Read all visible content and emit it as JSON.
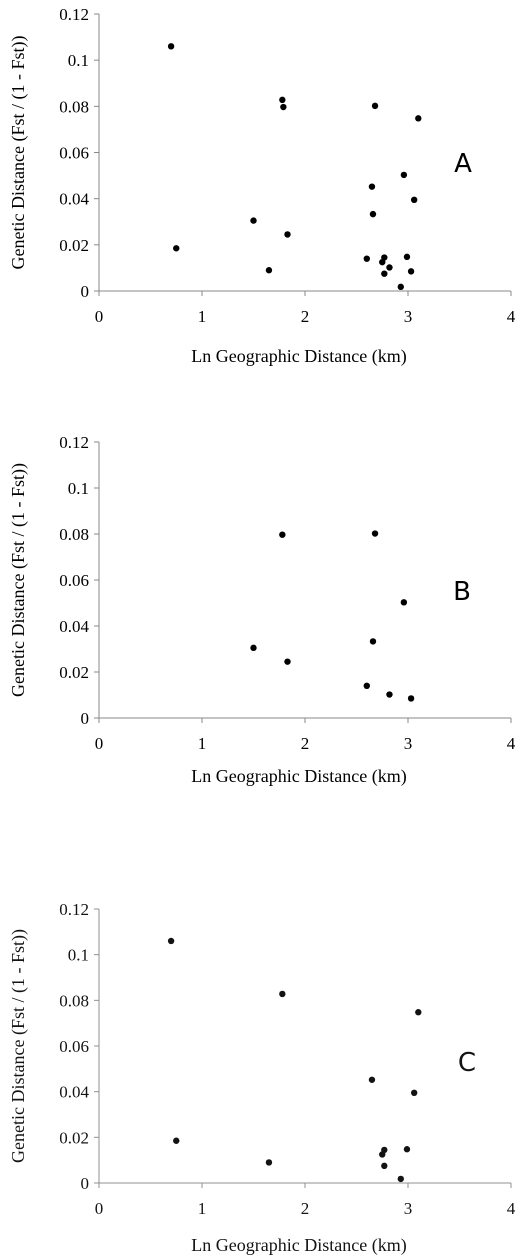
{
  "chart_data": [
    {
      "type": "scatter",
      "panel_label": "A",
      "xlabel": "Ln Geographic Distance (km)",
      "ylabel": "Genetic Distance (Fst / (1 - Fst))",
      "xlim": [
        0,
        4
      ],
      "ylim": [
        0,
        0.12
      ],
      "x_ticks": [
        "0",
        "1",
        "2",
        "3",
        "4"
      ],
      "y_ticks": [
        "0",
        "0.02",
        "0.04",
        "0.06",
        "0.08",
        "0.1",
        "0.12"
      ],
      "grid": false,
      "points": [
        {
          "x": 0.7,
          "y": 0.106
        },
        {
          "x": 0.75,
          "y": 0.0185
        },
        {
          "x": 1.5,
          "y": 0.0305
        },
        {
          "x": 1.65,
          "y": 0.009
        },
        {
          "x": 1.78,
          "y": 0.0828
        },
        {
          "x": 1.79,
          "y": 0.0797
        },
        {
          "x": 1.83,
          "y": 0.0245
        },
        {
          "x": 2.6,
          "y": 0.014
        },
        {
          "x": 2.65,
          "y": 0.0452
        },
        {
          "x": 2.66,
          "y": 0.0333
        },
        {
          "x": 2.68,
          "y": 0.0802
        },
        {
          "x": 2.75,
          "y": 0.0125
        },
        {
          "x": 2.77,
          "y": 0.0145
        },
        {
          "x": 2.77,
          "y": 0.0075
        },
        {
          "x": 2.82,
          "y": 0.0102
        },
        {
          "x": 2.93,
          "y": 0.0018
        },
        {
          "x": 2.96,
          "y": 0.0503
        },
        {
          "x": 2.99,
          "y": 0.0148
        },
        {
          "x": 3.03,
          "y": 0.0085
        },
        {
          "x": 3.06,
          "y": 0.0395
        },
        {
          "x": 3.1,
          "y": 0.0748
        }
      ]
    },
    {
      "type": "scatter",
      "panel_label": "B",
      "xlabel": "Ln Geographic Distance (km)",
      "ylabel": "Genetic Distance (Fst / (1 - Fst))",
      "xlim": [
        0,
        4
      ],
      "ylim": [
        0,
        0.12
      ],
      "x_ticks": [
        "0",
        "1",
        "2",
        "3",
        "4"
      ],
      "y_ticks": [
        "0",
        "0.02",
        "0.04",
        "0.06",
        "0.08",
        "0.1",
        "0.12"
      ],
      "grid": false,
      "points": [
        {
          "x": 1.5,
          "y": 0.0305
        },
        {
          "x": 1.78,
          "y": 0.0797
        },
        {
          "x": 1.83,
          "y": 0.0245
        },
        {
          "x": 2.6,
          "y": 0.014
        },
        {
          "x": 2.66,
          "y": 0.0333
        },
        {
          "x": 2.68,
          "y": 0.0802
        },
        {
          "x": 2.82,
          "y": 0.0102
        },
        {
          "x": 2.96,
          "y": 0.0503
        },
        {
          "x": 3.03,
          "y": 0.0085
        }
      ]
    },
    {
      "type": "scatter",
      "panel_label": "C",
      "xlabel": "Ln Geographic Distance (km)",
      "ylabel": "Genetic Distance (Fst / (1 - Fst))",
      "xlim": [
        0,
        4
      ],
      "ylim": [
        0,
        0.12
      ],
      "x_ticks": [
        "0",
        "1",
        "2",
        "3",
        "4"
      ],
      "y_ticks": [
        "0",
        "0.02",
        "0.04",
        "0.06",
        "0.08",
        "0.1",
        "0.12"
      ],
      "grid": false,
      "points": [
        {
          "x": 0.7,
          "y": 0.106
        },
        {
          "x": 0.75,
          "y": 0.0185
        },
        {
          "x": 1.65,
          "y": 0.009
        },
        {
          "x": 1.78,
          "y": 0.0828
        },
        {
          "x": 2.65,
          "y": 0.0452
        },
        {
          "x": 2.75,
          "y": 0.0125
        },
        {
          "x": 2.77,
          "y": 0.0145
        },
        {
          "x": 2.77,
          "y": 0.0075
        },
        {
          "x": 2.93,
          "y": 0.0018
        },
        {
          "x": 2.99,
          "y": 0.0148
        },
        {
          "x": 3.06,
          "y": 0.0395
        },
        {
          "x": 3.1,
          "y": 0.0748
        }
      ]
    }
  ]
}
